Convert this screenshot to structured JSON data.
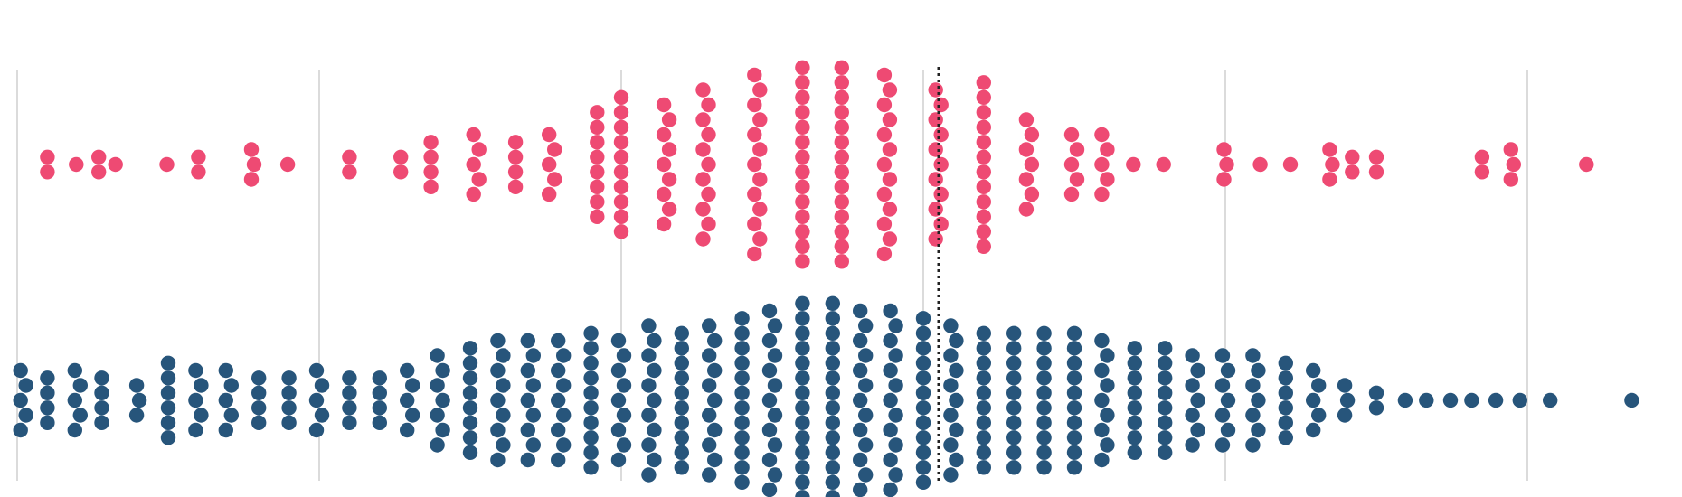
{
  "colors": {
    "background": "#ffffff",
    "grid": "#cfcfcf",
    "reference": "#222222",
    "series_a": "#ee4a73",
    "series_b": "#27557b"
  },
  "chart_data": {
    "type": "scatter",
    "subtype": "beeswarm",
    "grid": true,
    "vertical_gridlines_at": [
      0,
      1,
      2,
      3,
      4,
      5
    ],
    "reference_line_at": 3.0,
    "xlim": [
      0,
      5.45
    ],
    "series": [
      {
        "color": "#ee4a73",
        "counts": [
          [
            0.1,
            2
          ],
          [
            0.2,
            1
          ],
          [
            0.27,
            2
          ],
          [
            0.33,
            1
          ],
          [
            0.5,
            1
          ],
          [
            0.6,
            2
          ],
          [
            0.78,
            3
          ],
          [
            0.9,
            1
          ],
          [
            1.1,
            2
          ],
          [
            1.27,
            2
          ],
          [
            1.37,
            4
          ],
          [
            1.52,
            5
          ],
          [
            1.65,
            4
          ],
          [
            1.77,
            5
          ],
          [
            1.92,
            8
          ],
          [
            2.0,
            10
          ],
          [
            2.15,
            9
          ],
          [
            2.28,
            11
          ],
          [
            2.45,
            13
          ],
          [
            2.6,
            14
          ],
          [
            2.73,
            14
          ],
          [
            2.88,
            13
          ],
          [
            3.05,
            11
          ],
          [
            3.2,
            12
          ],
          [
            3.35,
            7
          ],
          [
            3.5,
            5
          ],
          [
            3.6,
            5
          ],
          [
            3.7,
            1
          ],
          [
            3.8,
            1
          ],
          [
            4.0,
            3
          ],
          [
            4.12,
            1
          ],
          [
            4.22,
            1
          ],
          [
            4.35,
            3
          ],
          [
            4.42,
            2
          ],
          [
            4.5,
            2
          ],
          [
            4.85,
            2
          ],
          [
            4.95,
            3
          ],
          [
            5.2,
            1
          ]
        ]
      },
      {
        "color": "#27557b",
        "counts": [
          [
            0.02,
            5
          ],
          [
            0.1,
            4
          ],
          [
            0.2,
            5
          ],
          [
            0.28,
            4
          ],
          [
            0.4,
            3
          ],
          [
            0.5,
            6
          ],
          [
            0.6,
            5
          ],
          [
            0.7,
            5
          ],
          [
            0.8,
            4
          ],
          [
            0.9,
            4
          ],
          [
            1.0,
            5
          ],
          [
            1.1,
            4
          ],
          [
            1.2,
            4
          ],
          [
            1.3,
            5
          ],
          [
            1.4,
            7
          ],
          [
            1.5,
            8
          ],
          [
            1.6,
            9
          ],
          [
            1.7,
            9
          ],
          [
            1.8,
            9
          ],
          [
            1.9,
            10
          ],
          [
            2.0,
            9
          ],
          [
            2.1,
            11
          ],
          [
            2.2,
            10
          ],
          [
            2.3,
            11
          ],
          [
            2.4,
            12
          ],
          [
            2.5,
            13
          ],
          [
            2.6,
            14
          ],
          [
            2.7,
            14
          ],
          [
            2.8,
            13
          ],
          [
            2.9,
            13
          ],
          [
            3.0,
            12
          ],
          [
            3.1,
            11
          ],
          [
            3.2,
            10
          ],
          [
            3.3,
            10
          ],
          [
            3.4,
            10
          ],
          [
            3.5,
            10
          ],
          [
            3.6,
            9
          ],
          [
            3.7,
            8
          ],
          [
            3.8,
            8
          ],
          [
            3.9,
            7
          ],
          [
            4.0,
            7
          ],
          [
            4.1,
            7
          ],
          [
            4.2,
            6
          ],
          [
            4.3,
            5
          ],
          [
            4.4,
            3
          ],
          [
            4.5,
            2
          ],
          [
            4.6,
            1
          ],
          [
            4.67,
            1
          ],
          [
            4.75,
            1
          ],
          [
            4.82,
            1
          ],
          [
            4.9,
            1
          ],
          [
            4.98,
            1
          ],
          [
            5.08,
            1
          ],
          [
            5.35,
            1
          ]
        ]
      }
    ]
  }
}
